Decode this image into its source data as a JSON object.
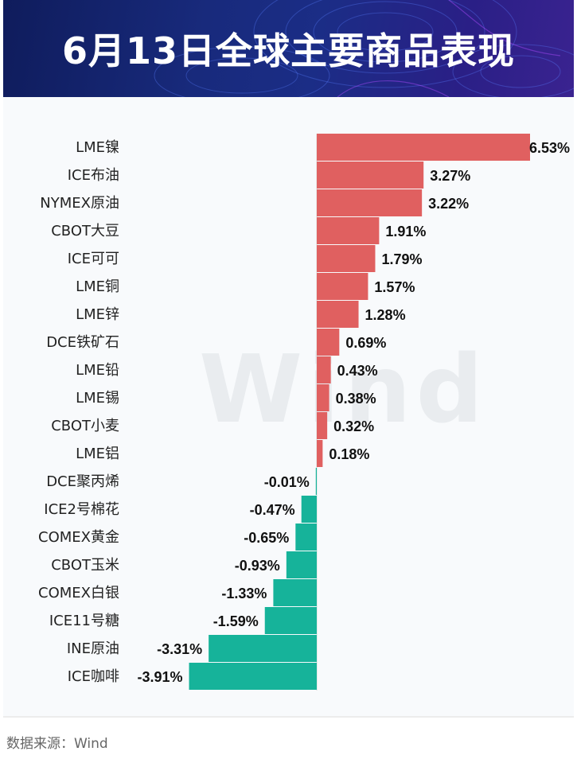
{
  "header": {
    "title": "6月13日全球主要商品表现"
  },
  "watermark": "Wind",
  "source": "数据来源：Wind",
  "colors": {
    "positive": "#e06060",
    "negative": "#16b39a",
    "header_bg": "#1a2a80"
  },
  "chart_data": {
    "type": "bar",
    "orientation": "horizontal",
    "title": "6月13日全球主要商品表现",
    "categories": [
      "LME镍",
      "ICE布油",
      "NYMEX原油",
      "CBOT大豆",
      "ICE可可",
      "LME铜",
      "LME锌",
      "DCE铁矿石",
      "LME铅",
      "LME锡",
      "CBOT小麦",
      "LME铝",
      "DCE聚丙烯",
      "ICE2号棉花",
      "COMEX黄金",
      "CBOT玉米",
      "COMEX白银",
      "ICE11号糖",
      "INE原油",
      "ICE咖啡"
    ],
    "values": [
      6.53,
      3.27,
      3.22,
      1.91,
      1.79,
      1.57,
      1.28,
      0.69,
      0.43,
      0.38,
      0.32,
      0.18,
      -0.01,
      -0.47,
      -0.65,
      -0.93,
      -1.33,
      -1.59,
      -3.31,
      -3.91
    ],
    "labels": [
      "6.53%",
      "3.27%",
      "3.22%",
      "1.91%",
      "1.79%",
      "1.57%",
      "1.28%",
      "0.69%",
      "0.43%",
      "0.38%",
      "0.32%",
      "0.18%",
      "-0.01%",
      "-0.47%",
      "-0.65%",
      "-0.93%",
      "-1.33%",
      "-1.59%",
      "-3.31%",
      "-3.91%"
    ],
    "unit": "%",
    "xlim": [
      -3.91,
      6.53
    ],
    "grid": false,
    "legend": "none"
  }
}
